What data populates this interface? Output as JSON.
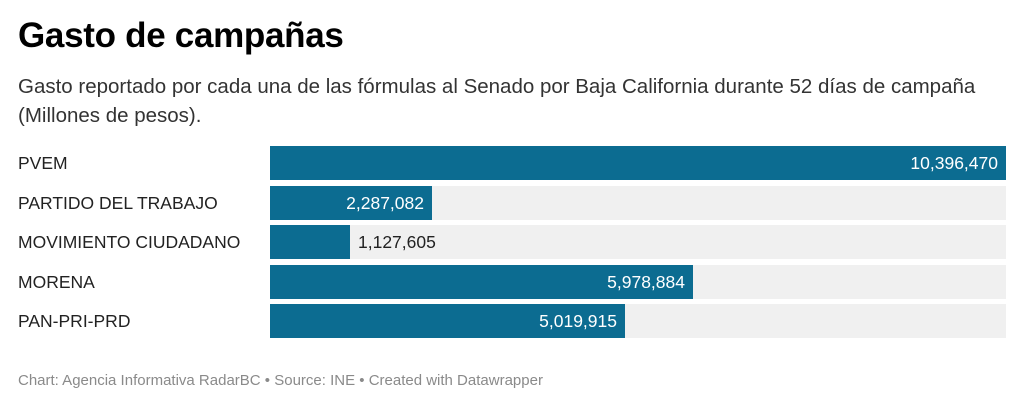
{
  "title": "Gasto de campañas",
  "subtitle": "Gasto reportado por cada una de las fórmulas al Senado por Baja California durante 52 días de campaña (Millones de pesos).",
  "footer": {
    "chart_credit": "Chart: Agencia Informativa RadarBC",
    "sep1": " • ",
    "source": "Source: INE",
    "sep2": " • ",
    "created": "Created with Datawrapper"
  },
  "colors": {
    "bar": "#0c6c91",
    "track": "#f0f0f0"
  },
  "chart_data": {
    "type": "bar",
    "orientation": "horizontal",
    "categories": [
      "PVEM",
      "PARTIDO DEL TRABAJO",
      "MOVIMIENTO CIUDADANO",
      "MORENA",
      "PAN-PRI-PRD"
    ],
    "values": [
      10396470,
      2287082,
      1127605,
      5978884,
      5019915
    ],
    "value_labels": [
      "10,396,470",
      "2,287,082",
      "1,127,605",
      "5,978,884",
      "5,019,915"
    ],
    "xlim": [
      0,
      10396470
    ],
    "grid": false,
    "legend": "none"
  }
}
